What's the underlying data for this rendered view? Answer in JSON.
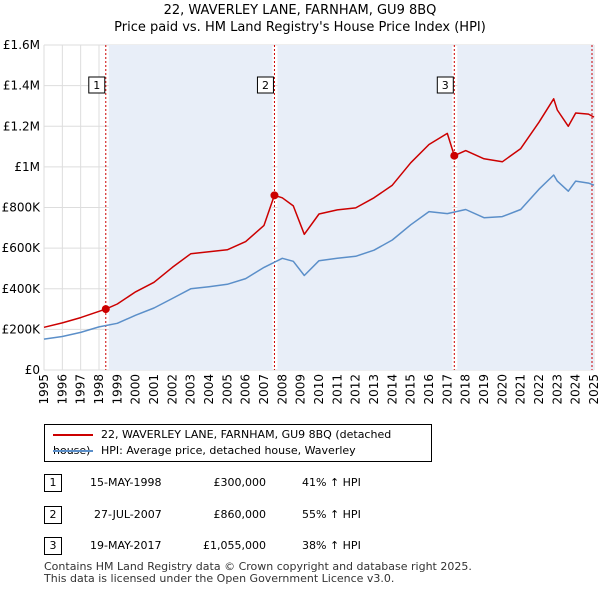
{
  "chart_data": {
    "type": "line",
    "title": "22, WAVERLEY LANE, FARNHAM, GU9 8BQ",
    "subtitle": "Price paid vs. HM Land Registry's House Price Index (HPI)",
    "xlim": [
      1995,
      2025
    ],
    "ylim": [
      0,
      1600000
    ],
    "yticks": [
      {
        "value": 0,
        "label": "£0"
      },
      {
        "value": 200000,
        "label": "£200K"
      },
      {
        "value": 400000,
        "label": "£400K"
      },
      {
        "value": 600000,
        "label": "£600K"
      },
      {
        "value": 800000,
        "label": "£800K"
      },
      {
        "value": 1000000,
        "label": "£1M"
      },
      {
        "value": 1200000,
        "label": "£1.2M"
      },
      {
        "value": 1400000,
        "label": "£1.4M"
      },
      {
        "value": 1600000,
        "label": "£1.6M"
      }
    ],
    "xticks": [
      "1995",
      "1996",
      "1997",
      "1998",
      "1999",
      "2000",
      "2001",
      "2002",
      "2003",
      "2004",
      "2005",
      "2006",
      "2007",
      "2008",
      "2009",
      "2010",
      "2011",
      "2012",
      "2013",
      "2014",
      "2015",
      "2016",
      "2017",
      "2018",
      "2019",
      "2020",
      "2021",
      "2022",
      "2023",
      "2024",
      "2025"
    ],
    "series": [
      {
        "name": "22, WAVERLEY LANE, FARNHAM, GU9 8BQ (detached house)",
        "color": "#cc0000",
        "x": [
          1995,
          1996,
          1997,
          1998.37,
          1999,
          2000,
          2001,
          2002,
          2003,
          2004,
          2005,
          2006,
          2007,
          2007.57,
          2008,
          2008.6,
          2009.2,
          2010,
          2011,
          2012,
          2013,
          2014,
          2015,
          2016,
          2017,
          2017.38,
          2018,
          2019,
          2020,
          2021,
          2022,
          2022.8,
          2023,
          2023.6,
          2024,
          2024.7,
          2025
        ],
        "y": [
          210000,
          232000,
          258000,
          300000,
          325000,
          385000,
          432000,
          505000,
          572000,
          582000,
          592000,
          632000,
          712000,
          860000,
          848000,
          808000,
          668000,
          768000,
          788000,
          798000,
          848000,
          910000,
          1020000,
          1110000,
          1165000,
          1055000,
          1080000,
          1040000,
          1025000,
          1090000,
          1220000,
          1335000,
          1280000,
          1200000,
          1265000,
          1260000,
          1245000
        ]
      },
      {
        "name": "HPI: Average price, detached house, Waverley",
        "color": "#5b8fc9",
        "x": [
          1995,
          1996,
          1997,
          1998,
          1999,
          2000,
          2001,
          2002,
          2003,
          2004,
          2005,
          2006,
          2007,
          2008,
          2008.6,
          2009.2,
          2010,
          2011,
          2012,
          2013,
          2014,
          2015,
          2016,
          2017,
          2018,
          2019,
          2020,
          2021,
          2022,
          2022.8,
          2023,
          2023.6,
          2024,
          2024.7,
          2025
        ],
        "y": [
          152000,
          165000,
          185000,
          212000,
          230000,
          270000,
          305000,
          352000,
          400000,
          410000,
          422000,
          450000,
          505000,
          550000,
          535000,
          465000,
          538000,
          550000,
          560000,
          590000,
          640000,
          715000,
          780000,
          770000,
          790000,
          750000,
          755000,
          790000,
          890000,
          960000,
          930000,
          880000,
          930000,
          920000,
          910000
        ]
      }
    ],
    "markers": [
      {
        "label": "1",
        "x": 1998.37,
        "y": 300000
      },
      {
        "label": "2",
        "x": 2007.57,
        "y": 860000
      },
      {
        "label": "3",
        "x": 2017.38,
        "y": 1055000
      }
    ],
    "legend": {
      "position": "bottom"
    }
  },
  "transactions": [
    {
      "num": "1",
      "date": "15-MAY-1998",
      "price": "£300,000",
      "hpi": "41% ↑ HPI"
    },
    {
      "num": "2",
      "date": "27-JUL-2007",
      "price": "£860,000",
      "hpi": "55% ↑ HPI"
    },
    {
      "num": "3",
      "date": "19-MAY-2017",
      "price": "£1,055,000",
      "hpi": "38% ↑ HPI"
    }
  ],
  "footer": {
    "line1": "Contains HM Land Registry data © Crown copyright and database right 2025.",
    "line2": "This data is licensed under the Open Government Licence v3.0."
  }
}
